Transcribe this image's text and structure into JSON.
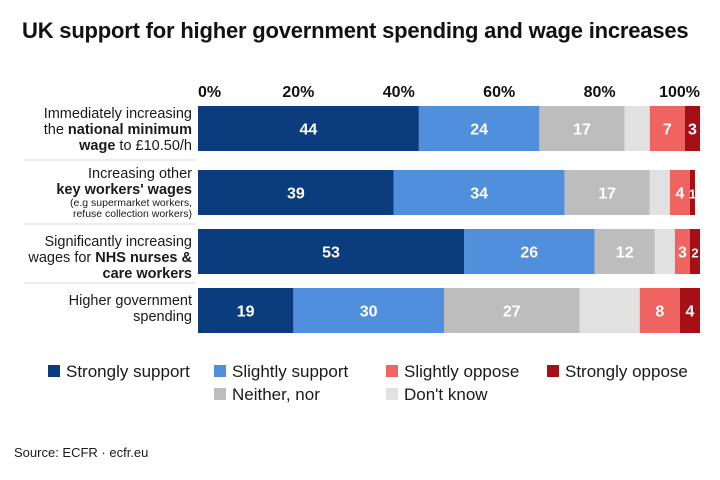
{
  "title": "UK support for higher government spending and wage increases",
  "source": "Source:  ECFR · ecfr.eu",
  "categories_display": [
    {
      "line1": "Immediately increasing",
      "line2_pre": "the ",
      "line2_bold": "national minimum",
      "line3_bold": "wage",
      "line3_post": " to £10.50/h"
    },
    {
      "line1": "Increasing other",
      "line2_bold": "key workers' wages",
      "small1": "(e.g supermarket workers,",
      "small2": "refuse collection workers)"
    },
    {
      "line1": "Significantly increasing",
      "line2_pre": "wages for ",
      "line2_bold": "NHS nurses &",
      "line3_bold": "care workers"
    },
    {
      "line1": "Higher government",
      "line2": "spending"
    }
  ],
  "colors": {
    "Strongly support": "#0b3c7d",
    "Slightly support": "#4f8fdc",
    "Neither, nor": "#bdbdbd",
    "Don't know": "#e1e1e1",
    "Slightly oppose": "#ef6461",
    "Strongly oppose": "#a50f15"
  },
  "legend_rows": [
    [
      "Strongly support",
      "Slightly support",
      "Slightly oppose",
      "Strongly oppose"
    ],
    [
      "Neither, nor",
      "Don't know"
    ]
  ],
  "chart_data": {
    "type": "bar",
    "orientation": "horizontal",
    "stacked": "100%",
    "title": "UK support for higher government spending and wage increases",
    "categories": [
      "Immediately increasing the national minimum wage to £10.50/h",
      "Increasing other key workers' wages (e.g supermarket workers, refuse collection workers)",
      "Significantly increasing wages for NHS nurses & care workers",
      "Higher government spending"
    ],
    "xlim": [
      0,
      100
    ],
    "x_ticks": [
      "0%",
      "20%",
      "40%",
      "60%",
      "80%",
      "100%"
    ],
    "x_axis_position": "top",
    "legend_position": "bottom",
    "series": [
      {
        "name": "Strongly support",
        "values": [
          44,
          39,
          53,
          19
        ]
      },
      {
        "name": "Slightly support",
        "values": [
          24,
          34,
          26,
          30
        ]
      },
      {
        "name": "Neither, nor",
        "values": [
          17,
          17,
          12,
          27
        ]
      },
      {
        "name": "Don't know",
        "values": [
          5,
          4,
          4,
          12
        ]
      },
      {
        "name": "Slightly oppose",
        "values": [
          7,
          4,
          3,
          8
        ]
      },
      {
        "name": "Strongly oppose",
        "values": [
          3,
          1,
          2,
          4
        ]
      }
    ],
    "data_labels": [
      [
        "44",
        "24",
        "17",
        "",
        "7",
        "3"
      ],
      [
        "39",
        "34",
        "17",
        "",
        "4",
        "1"
      ],
      [
        "53",
        "26",
        "12",
        "",
        "3",
        "2"
      ],
      [
        "19",
        "30",
        "27",
        "",
        "8",
        "4"
      ]
    ]
  }
}
